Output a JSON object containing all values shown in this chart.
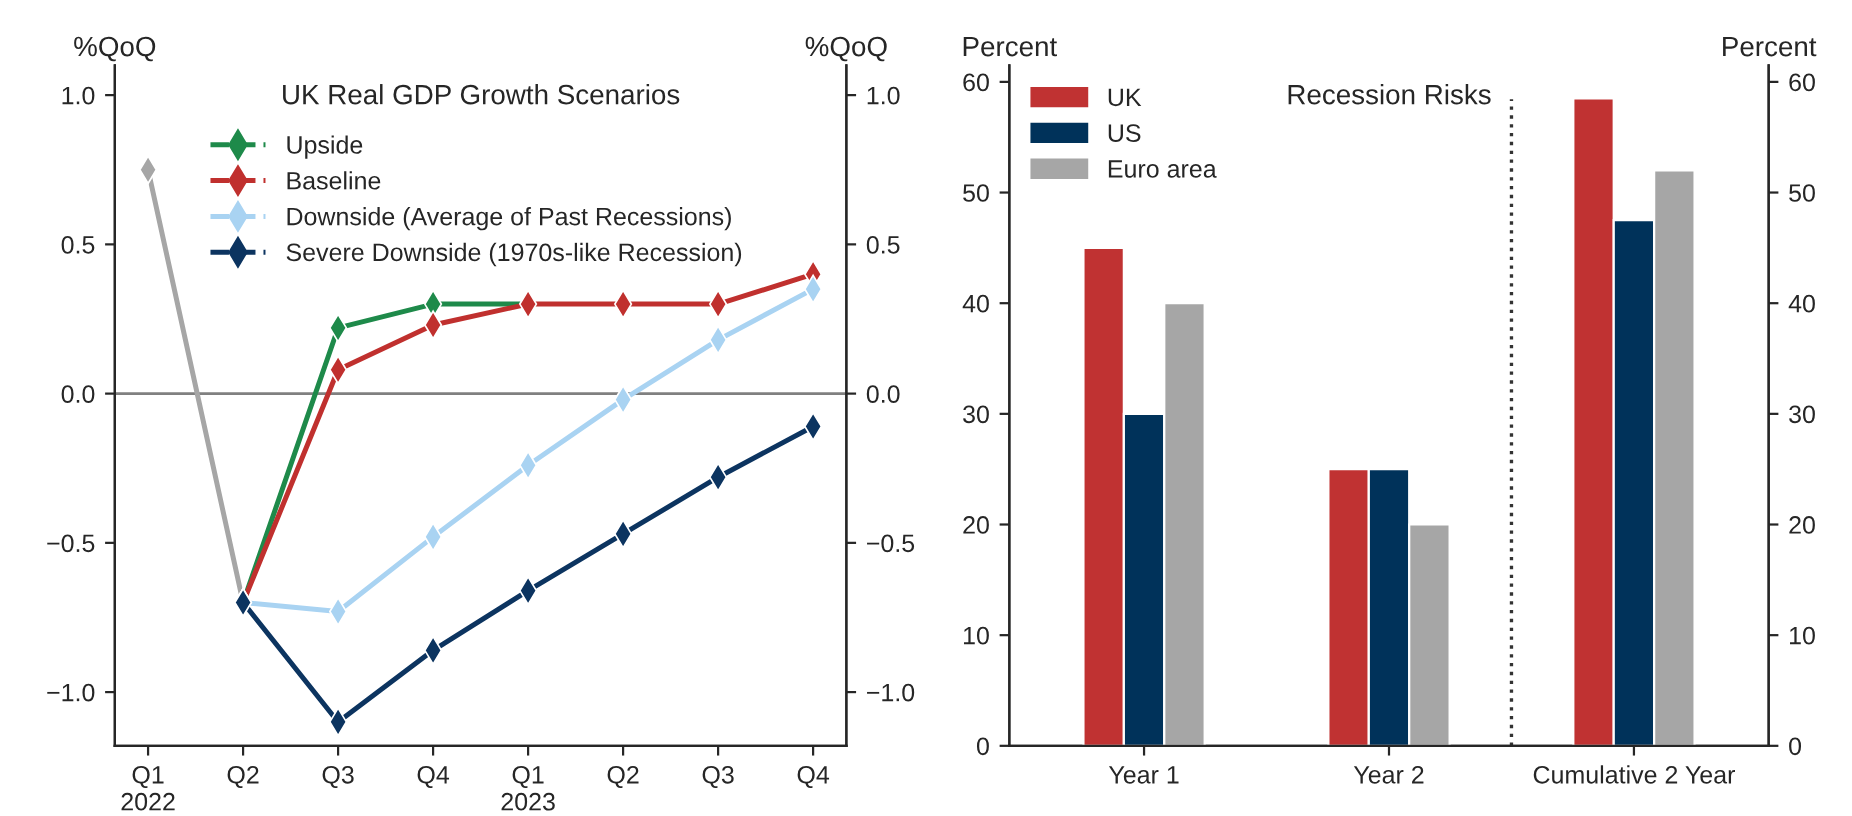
{
  "chart_data": [
    {
      "type": "line",
      "title": "UK Real GDP Growth Scenarios",
      "ylabel": "%QoQ",
      "y2label": "%QoQ",
      "categories": [
        "Q1\n2022",
        "Q2",
        "Q3",
        "Q4",
        "Q1\n2023",
        "Q2",
        "Q3",
        "Q4"
      ],
      "series": [
        {
          "color": "#a6a6a6",
          "values": [
            0.75,
            -0.7,
            null,
            null,
            null,
            null,
            null,
            null
          ]
        },
        {
          "name": "Upside",
          "color": "#1e8a4a",
          "values": [
            null,
            -0.7,
            0.22,
            0.3,
            0.3,
            null,
            null,
            null
          ]
        },
        {
          "name": "Baseline",
          "color": "#c0302e",
          "values": [
            null,
            -0.7,
            0.08,
            0.23,
            0.3,
            0.3,
            0.3,
            0.4
          ]
        },
        {
          "name": "Downside (Average of Past Recessions)",
          "color": "#a9d3f2",
          "values": [
            null,
            -0.7,
            -0.73,
            -0.48,
            -0.24,
            -0.02,
            0.18,
            0.35
          ]
        },
        {
          "name": "Severe Downside (1970s-like Recession)",
          "color": "#0c3460",
          "values": [
            null,
            -0.7,
            -1.1,
            -0.86,
            -0.66,
            -0.47,
            -0.28,
            -0.11
          ]
        }
      ],
      "ylim": [
        -1.18,
        1.1
      ],
      "yticks": [
        {
          "value": -1.0,
          "label": "−1.0"
        },
        {
          "value": -0.5,
          "label": "−0.5"
        },
        {
          "value": 0.0,
          "label": "0.0"
        },
        {
          "value": 0.5,
          "label": "0.5"
        },
        {
          "value": 1.0,
          "label": "1.0"
        }
      ],
      "y2lim": [
        -1.18,
        1.1
      ],
      "y2ticks": [
        {
          "value": -1.0,
          "label": "−1.0"
        },
        {
          "value": -0.5,
          "label": "−0.5"
        },
        {
          "value": 0.0,
          "label": "0.0"
        },
        {
          "value": 0.5,
          "label": "0.5"
        },
        {
          "value": 1.0,
          "label": "1.0"
        }
      ],
      "ref_lines": [
        {
          "axis": "y",
          "value": 0,
          "color": "#808080",
          "line_style": "solid"
        }
      ],
      "marker": "diamond",
      "line_style": "solid",
      "legend": "top left",
      "grid": false
    },
    {
      "type": "bar",
      "title": "Recession Risks",
      "ylabel": "Percent",
      "y2label": "Percent",
      "categories": [
        "Year 1",
        "Year 2",
        "Cumulative 2 Year"
      ],
      "series": [
        {
          "name": "UK",
          "color": "#c03232",
          "values": [
            45,
            25,
            58.5
          ]
        },
        {
          "name": "US",
          "color": "#00325a",
          "values": [
            30,
            25,
            47.5
          ]
        },
        {
          "name": "Euro area",
          "color": "#a6a6a6",
          "values": [
            40,
            20,
            52
          ]
        }
      ],
      "ylim": [
        0,
        61.5
      ],
      "yticks": [
        0,
        10,
        20,
        30,
        40,
        50,
        60
      ],
      "y2lim": [
        0,
        61.5
      ],
      "y2ticks": [
        0,
        10,
        20,
        30,
        40,
        50,
        60
      ],
      "legend": "top left",
      "grid": false
    }
  ]
}
